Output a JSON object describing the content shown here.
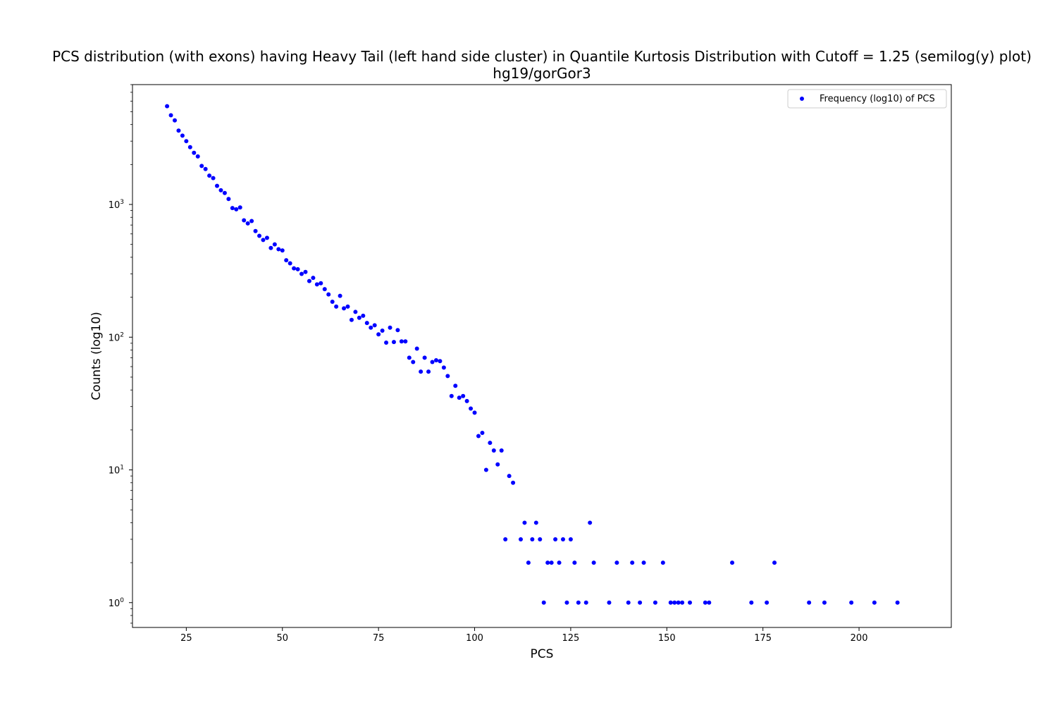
{
  "chart_data": {
    "type": "scatter",
    "title": "PCS distribution (with exons) having Heavy Tail (left hand side cluster) in Quantile Kurtosis Distribution with Cutoff = 1.25 (semilog(y) plot)",
    "subtitle": "hg19/gorGor3",
    "xlabel": "PCS",
    "ylabel": "Counts (log10)",
    "yscale": "log",
    "xlim": [
      11,
      224
    ],
    "ylim": [
      0.65,
      8000
    ],
    "xticks": [
      25,
      50,
      75,
      100,
      125,
      150,
      175,
      200
    ],
    "yticks": [
      {
        "value": 1,
        "base": "10",
        "exp": "0"
      },
      {
        "value": 10,
        "base": "10",
        "exp": "1"
      },
      {
        "value": 100,
        "base": "10",
        "exp": "2"
      },
      {
        "value": 1000,
        "base": "10",
        "exp": "3"
      }
    ],
    "legend": {
      "position": "top-right",
      "label": "Frequency (log10) of PCS"
    },
    "color": "#0000ff",
    "series": [
      {
        "name": "Frequency (log10) of PCS",
        "points": [
          [
            20,
            5500
          ],
          [
            21,
            4700
          ],
          [
            22,
            4300
          ],
          [
            23,
            3600
          ],
          [
            24,
            3300
          ],
          [
            25,
            3000
          ],
          [
            26,
            2700
          ],
          [
            27,
            2450
          ],
          [
            28,
            2300
          ],
          [
            29,
            1950
          ],
          [
            30,
            1850
          ],
          [
            31,
            1650
          ],
          [
            32,
            1580
          ],
          [
            33,
            1380
          ],
          [
            34,
            1280
          ],
          [
            35,
            1220
          ],
          [
            36,
            1100
          ],
          [
            37,
            940
          ],
          [
            38,
            920
          ],
          [
            39,
            950
          ],
          [
            40,
            760
          ],
          [
            41,
            720
          ],
          [
            42,
            750
          ],
          [
            43,
            630
          ],
          [
            44,
            580
          ],
          [
            45,
            540
          ],
          [
            46,
            560
          ],
          [
            47,
            470
          ],
          [
            48,
            500
          ],
          [
            49,
            460
          ],
          [
            50,
            450
          ],
          [
            51,
            380
          ],
          [
            52,
            360
          ],
          [
            53,
            330
          ],
          [
            54,
            325
          ],
          [
            55,
            300
          ],
          [
            56,
            310
          ],
          [
            57,
            265
          ],
          [
            58,
            280
          ],
          [
            59,
            250
          ],
          [
            60,
            255
          ],
          [
            61,
            230
          ],
          [
            62,
            210
          ],
          [
            63,
            185
          ],
          [
            64,
            170
          ],
          [
            65,
            205
          ],
          [
            66,
            165
          ],
          [
            67,
            170
          ],
          [
            68,
            135
          ],
          [
            69,
            155
          ],
          [
            70,
            140
          ],
          [
            71,
            145
          ],
          [
            72,
            128
          ],
          [
            73,
            118
          ],
          [
            74,
            123
          ],
          [
            75,
            105
          ],
          [
            76,
            112
          ],
          [
            77,
            91
          ],
          [
            78,
            118
          ],
          [
            79,
            92
          ],
          [
            80,
            113
          ],
          [
            81,
            93
          ],
          [
            82,
            93
          ],
          [
            83,
            70
          ],
          [
            84,
            65
          ],
          [
            85,
            82
          ],
          [
            86,
            55
          ],
          [
            87,
            70
          ],
          [
            88,
            55
          ],
          [
            89,
            65
          ],
          [
            90,
            67
          ],
          [
            91,
            66
          ],
          [
            92,
            59
          ],
          [
            93,
            51
          ],
          [
            94,
            36
          ],
          [
            95,
            43
          ],
          [
            96,
            35
          ],
          [
            97,
            36
          ],
          [
            98,
            33
          ],
          [
            99,
            29
          ],
          [
            100,
            27
          ],
          [
            101,
            18
          ],
          [
            102,
            19
          ],
          [
            103,
            10
          ],
          [
            104,
            16
          ],
          [
            105,
            14
          ],
          [
            106,
            11
          ],
          [
            107,
            14
          ],
          [
            109,
            9
          ],
          [
            110,
            8
          ],
          [
            108,
            3
          ],
          [
            112,
            3
          ],
          [
            113,
            4
          ],
          [
            114,
            2
          ],
          [
            115,
            3
          ],
          [
            116,
            4
          ],
          [
            117,
            3
          ],
          [
            118,
            1
          ],
          [
            119,
            2
          ],
          [
            120,
            2
          ],
          [
            121,
            3
          ],
          [
            122,
            2
          ],
          [
            123,
            3
          ],
          [
            124,
            1
          ],
          [
            125,
            3
          ],
          [
            126,
            2
          ],
          [
            127,
            1
          ],
          [
            129,
            1
          ],
          [
            130,
            4
          ],
          [
            131,
            2
          ],
          [
            135,
            1
          ],
          [
            137,
            2
          ],
          [
            140,
            1
          ],
          [
            141,
            2
          ],
          [
            143,
            1
          ],
          [
            144,
            2
          ],
          [
            147,
            1
          ],
          [
            149,
            2
          ],
          [
            151,
            1
          ],
          [
            152,
            1
          ],
          [
            153,
            1
          ],
          [
            154,
            1
          ],
          [
            156,
            1
          ],
          [
            160,
            1
          ],
          [
            161,
            1
          ],
          [
            167,
            2
          ],
          [
            172,
            1
          ],
          [
            176,
            1
          ],
          [
            178,
            2
          ],
          [
            187,
            1
          ],
          [
            191,
            1
          ],
          [
            198,
            1
          ],
          [
            204,
            1
          ],
          [
            210,
            1
          ]
        ]
      }
    ]
  }
}
